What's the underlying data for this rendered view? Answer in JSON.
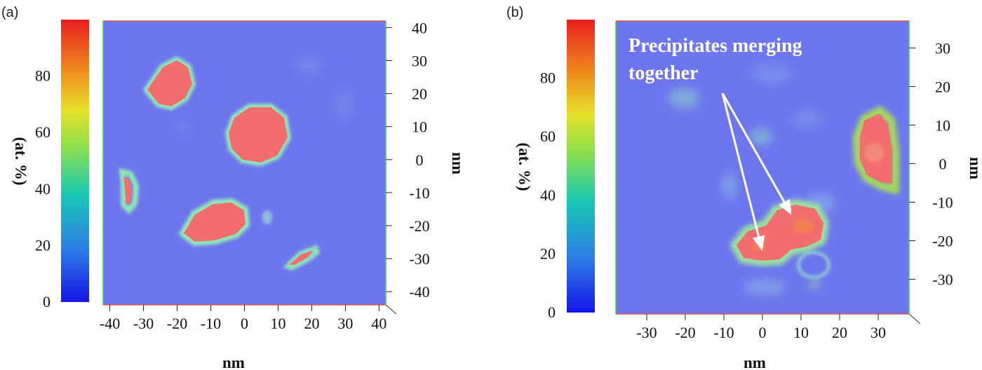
{
  "chart_data": [
    {
      "type": "heatmap",
      "panel": "(a)",
      "colorbar": {
        "label": "(at. %)",
        "range": [
          0,
          100
        ],
        "ticks": [
          "0",
          "20",
          "40",
          "60",
          "80"
        ],
        "colors": [
          "#1414e6",
          "#2d7be6",
          "#18c8b4",
          "#8ee04a",
          "#e8e028",
          "#f08a1e",
          "#e81e1e"
        ]
      },
      "x_axis": {
        "label": "nm",
        "range": [
          -42,
          42
        ],
        "ticks": [
          "-40",
          "-30",
          "-20",
          "-10",
          "0",
          "10",
          "20",
          "30",
          "40"
        ]
      },
      "y_axis": {
        "label": "nm",
        "range": [
          -44,
          42
        ],
        "ticks": [
          "40",
          "30",
          "20",
          "10",
          "0",
          "-10",
          "-20",
          "-30",
          "-40"
        ],
        "position": "right"
      },
      "background_color": "#6e76ee",
      "precipitate_color": "#f26d6d",
      "precipitates_nm": [
        {
          "x": -24,
          "y": 24,
          "size": 11
        },
        {
          "x": 5,
          "y": 8,
          "size": 16
        },
        {
          "x": -35,
          "y": -8,
          "size": 5
        },
        {
          "x": -10,
          "y": -18,
          "size": 16
        },
        {
          "x": 19,
          "y": -29,
          "size": 7
        }
      ]
    },
    {
      "type": "heatmap",
      "panel": "(b)",
      "colorbar": {
        "label": "(at. %)",
        "range": [
          0,
          100
        ],
        "ticks": [
          "0",
          "20",
          "40",
          "60",
          "80"
        ],
        "colors": [
          "#1414e6",
          "#2d7be6",
          "#18c8b4",
          "#8ee04a",
          "#e8e028",
          "#f08a1e",
          "#e81e1e"
        ]
      },
      "x_axis": {
        "label": "nm",
        "range": [
          -38,
          38
        ],
        "ticks": [
          "-30",
          "-20",
          "-10",
          "0",
          "10",
          "20",
          "30"
        ]
      },
      "y_axis": {
        "label": "nm",
        "range": [
          -39,
          37
        ],
        "ticks": [
          "30",
          "20",
          "10",
          "0",
          "-10",
          "-20",
          "-30"
        ],
        "position": "right"
      },
      "background_color": "#6e76ee",
      "precipitate_color": "#f26d6d",
      "precipitates_nm": [
        {
          "x": 32,
          "y": 4,
          "size": 9
        },
        {
          "x": 5,
          "y": -17,
          "size": 18
        }
      ],
      "annotation": {
        "text_line1": "Precipitates merging",
        "text_line2": "together"
      }
    }
  ]
}
